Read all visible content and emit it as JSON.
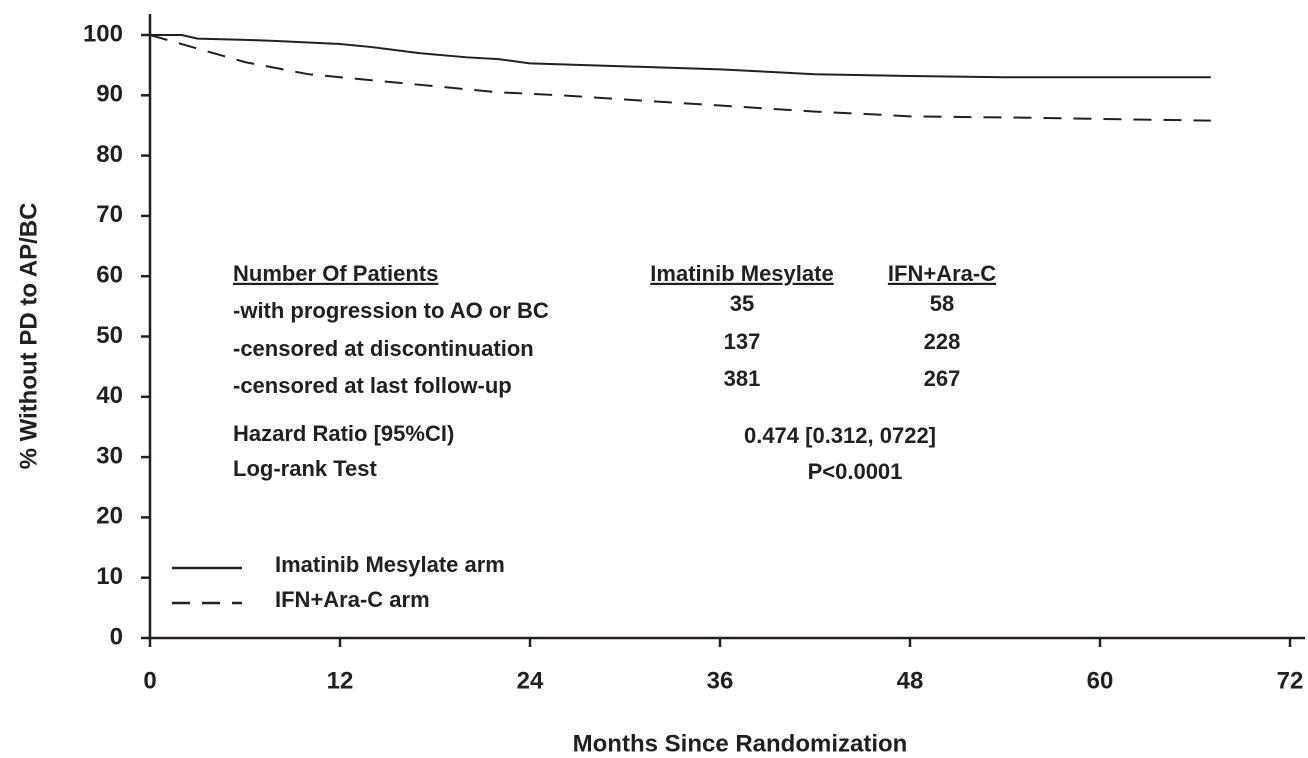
{
  "chart_data": {
    "type": "line",
    "x_label": "Months Since Randomization",
    "y_label": "% Without PD to AP/BC",
    "xlim": [
      0,
      72
    ],
    "xticks": [
      0,
      12,
      24,
      36,
      48,
      60,
      72
    ],
    "ylim": [
      0,
      100
    ],
    "yticks": [
      0,
      10,
      20,
      30,
      40,
      50,
      60,
      70,
      80,
      90,
      100
    ],
    "series": [
      {
        "name": "Imatinib Mesylate arm",
        "color": "#231f20",
        "line_style": "solid",
        "x": [
          0,
          2,
          3,
          6,
          8,
          12,
          14,
          17,
          20,
          22,
          24,
          30,
          36,
          42,
          48,
          54,
          67
        ],
        "values": [
          100,
          100,
          99.4,
          99.2,
          99,
          98.5,
          98,
          97,
          96.3,
          96,
          95.3,
          94.8,
          94.3,
          93.5,
          93.2,
          93,
          93
        ]
      },
      {
        "name": "IFN+Ara-C arm",
        "color": "#231f20",
        "line_style": "dashed",
        "x": [
          0,
          2,
          4,
          6,
          8,
          10,
          14,
          18,
          22,
          26,
          30,
          36,
          42,
          46,
          48,
          55,
          62,
          67
        ],
        "values": [
          100,
          98.5,
          97,
          95.5,
          94.5,
          93.5,
          92.5,
          91.5,
          90.5,
          90,
          89.3,
          88.3,
          87.3,
          86.8,
          86.5,
          86.3,
          86,
          85.8
        ]
      }
    ],
    "patients_table": {
      "header": [
        "Number Of Patients",
        "Imatinib Mesylate",
        "IFN+Ara-C"
      ],
      "rows": [
        [
          "-with progression to AO or BC",
          35,
          58
        ],
        [
          "-censored at discontinuation",
          137,
          228
        ],
        [
          "-censored at last follow-up",
          381,
          267
        ]
      ]
    },
    "hazard_ratio": {
      "label": "Hazard Ratio [95%CI)",
      "value": "0.474 [0.312, 0722]"
    },
    "log_rank": {
      "label": "Log-rank Test",
      "value": "P<0.0001"
    }
  }
}
